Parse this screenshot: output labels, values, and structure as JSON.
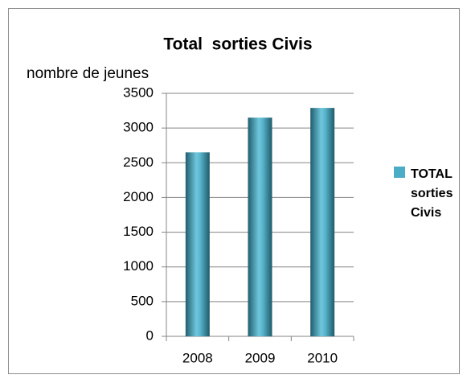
{
  "chart_data": {
    "type": "bar",
    "title": "Total  sorties Civis",
    "y_label": "nombre de jeunes",
    "categories": [
      "2008",
      "2009",
      "2010"
    ],
    "series": [
      {
        "name": "TOTAL sorties Civis",
        "color": "#4bacc6",
        "values": [
          2650,
          3150,
          3290
        ]
      }
    ],
    "ylim": [
      0,
      3500
    ],
    "yticks": [
      0,
      500,
      1000,
      1500,
      2000,
      2500,
      3000,
      3500
    ],
    "grid": true,
    "legend": "right"
  }
}
